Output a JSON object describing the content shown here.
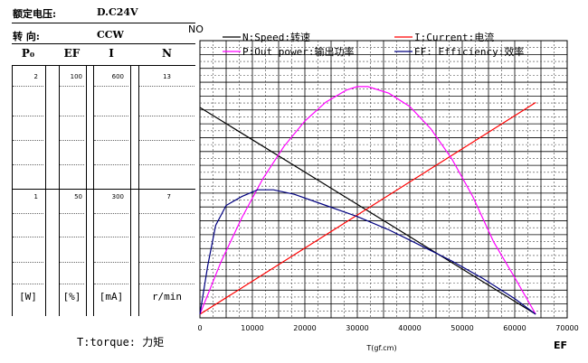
{
  "header": {
    "voltage_label": "额定电压:",
    "voltage_value": "D.C24V",
    "direction_label": "转    向:",
    "direction_value": "CCW"
  },
  "left_table": {
    "columns": [
      {
        "key": "p",
        "head": "P₀",
        "top": "2",
        "mid": "1",
        "unit": "[W]"
      },
      {
        "key": "ef",
        "head": "EF",
        "top": "100",
        "mid": "50",
        "unit": "[%]"
      },
      {
        "key": "i",
        "head": "I",
        "top": "600",
        "mid": "300",
        "unit": "[mA]"
      },
      {
        "key": "n",
        "head": "N",
        "top": "13",
        "mid": "7",
        "unit": "r/min"
      }
    ]
  },
  "torque_label": "T:torque: 力矩",
  "chart_data": {
    "type": "line",
    "xlabel": "T(gf.cm)",
    "x_ticks": [
      0,
      10000,
      20000,
      30000,
      40000,
      50000,
      60000,
      70000
    ],
    "xlim": [
      0,
      70000
    ],
    "corner_top_left": "NO",
    "corner_bottom_right": "EF",
    "grid": true,
    "legend_position": "top",
    "series": [
      {
        "name": "N:Speed:转速",
        "color": "#000000",
        "axis": "N",
        "points": [
          [
            0,
            12.1
          ],
          [
            64000,
            0
          ]
        ]
      },
      {
        "name": "I:Current:电流",
        "color": "#ff0000",
        "axis": "I",
        "points": [
          [
            0,
            0
          ],
          [
            64000,
            572
          ]
        ]
      },
      {
        "name": "P:Out power:输出功率",
        "color": "#ff00ff",
        "axis": "P",
        "points": [
          [
            0,
            0
          ],
          [
            4000,
            0.47
          ],
          [
            8000,
            0.87
          ],
          [
            12000,
            1.22
          ],
          [
            16000,
            1.51
          ],
          [
            20000,
            1.74
          ],
          [
            24000,
            1.91
          ],
          [
            28000,
            2.02
          ],
          [
            30000,
            2.05
          ],
          [
            32000,
            2.05
          ],
          [
            36000,
            1.99
          ],
          [
            40000,
            1.87
          ],
          [
            44000,
            1.67
          ],
          [
            48000,
            1.4
          ],
          [
            52000,
            1.06
          ],
          [
            56000,
            0.65
          ],
          [
            60000,
            0.33
          ],
          [
            64000,
            0
          ]
        ]
      },
      {
        "name": "EF: Efficiency:效率",
        "color": "#000080",
        "axis": "EF",
        "points": [
          [
            0,
            0
          ],
          [
            1500,
            22
          ],
          [
            3000,
            40
          ],
          [
            5000,
            49
          ],
          [
            8000,
            53
          ],
          [
            11000,
            56
          ],
          [
            14000,
            56
          ],
          [
            18000,
            54
          ],
          [
            24000,
            49
          ],
          [
            30000,
            44
          ],
          [
            36000,
            38
          ],
          [
            42000,
            31
          ],
          [
            48000,
            24
          ],
          [
            54000,
            16
          ],
          [
            60000,
            7
          ],
          [
            64000,
            0
          ]
        ]
      }
    ],
    "right_axes": {
      "P": [
        0,
        2
      ],
      "EF": [
        0,
        100
      ],
      "I": [
        0,
        600
      ],
      "N": [
        0,
        13
      ]
    }
  }
}
